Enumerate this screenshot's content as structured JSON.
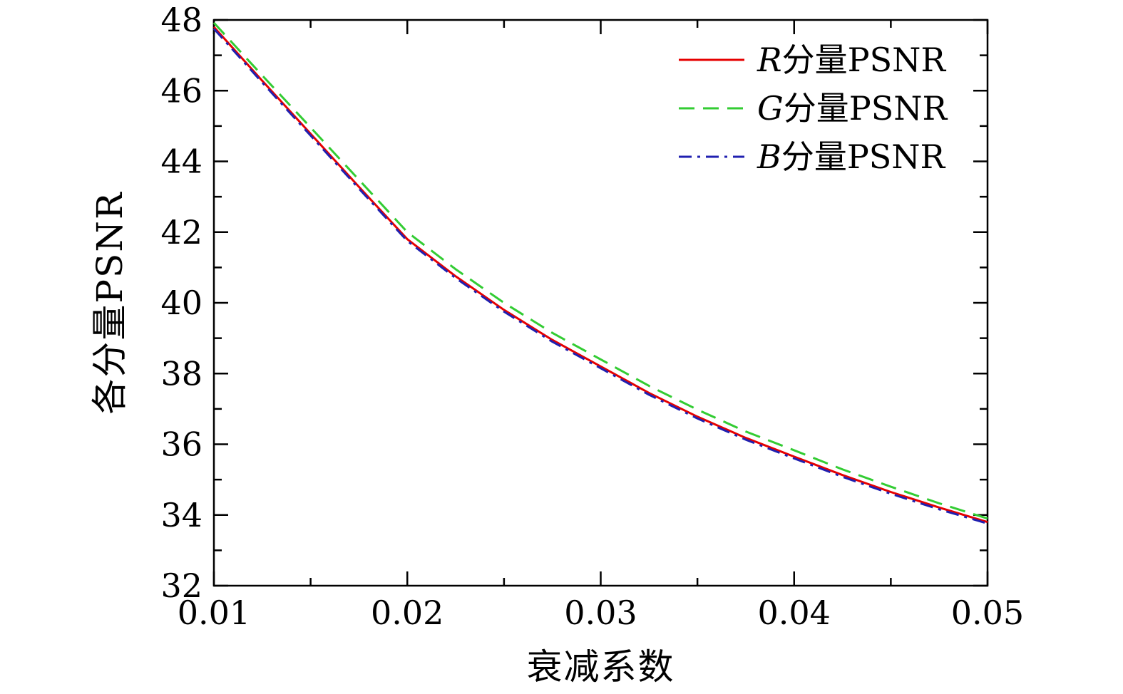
{
  "chart_data": {
    "type": "line",
    "title": "",
    "xlabel": "衰减系数",
    "ylabel": "各分量PSNR",
    "xlim": [
      0.01,
      0.05
    ],
    "ylim": [
      32,
      48
    ],
    "grid": false,
    "legend_position": "top-right",
    "background": "#ffffff",
    "frame_color": "#000000",
    "x": [
      0.01,
      0.0125,
      0.015,
      0.0175,
      0.02,
      0.0225,
      0.025,
      0.0275,
      0.03,
      0.0325,
      0.035,
      0.0375,
      0.04,
      0.0425,
      0.045,
      0.0475,
      0.05
    ],
    "series": [
      {
        "name": "R分量PSNR",
        "color": "#e60000",
        "style": "solid",
        "dash": "",
        "values": [
          47.8,
          46.28,
          44.78,
          43.28,
          41.8,
          40.75,
          39.8,
          38.95,
          38.2,
          37.45,
          36.78,
          36.18,
          35.65,
          35.13,
          34.65,
          34.21,
          33.8
        ]
      },
      {
        "name": "G分量PSNR",
        "color": "#33cc33",
        "style": "dashed",
        "dash": "22 12",
        "values": [
          47.92,
          46.43,
          44.96,
          43.48,
          42.0,
          40.95,
          40.0,
          39.15,
          38.4,
          37.65,
          36.98,
          36.36,
          35.83,
          35.29,
          34.8,
          34.33,
          33.9
        ]
      },
      {
        "name": "B分量PSNR",
        "color": "#2020b0",
        "style": "dash-dot",
        "dash": "18 8 4 8",
        "values": [
          47.75,
          46.23,
          44.73,
          43.23,
          41.75,
          40.7,
          39.75,
          38.9,
          38.15,
          37.4,
          36.73,
          36.13,
          35.6,
          35.08,
          34.6,
          34.16,
          33.76
        ]
      }
    ],
    "xticks": {
      "values": [
        0.01,
        0.02,
        0.03,
        0.04,
        0.05
      ],
      "labels": [
        "0.01",
        "0.02",
        "0.03",
        "0.04",
        "0.05"
      ],
      "minor": [
        0.015,
        0.025,
        0.035,
        0.045
      ]
    },
    "yticks": {
      "values": [
        32,
        34,
        36,
        38,
        40,
        42,
        44,
        46,
        48
      ],
      "labels": [
        "32",
        "34",
        "36",
        "38",
        "40",
        "42",
        "44",
        "46",
        "48"
      ],
      "minor": [
        33,
        35,
        37,
        39,
        41,
        43,
        45,
        47
      ]
    }
  }
}
